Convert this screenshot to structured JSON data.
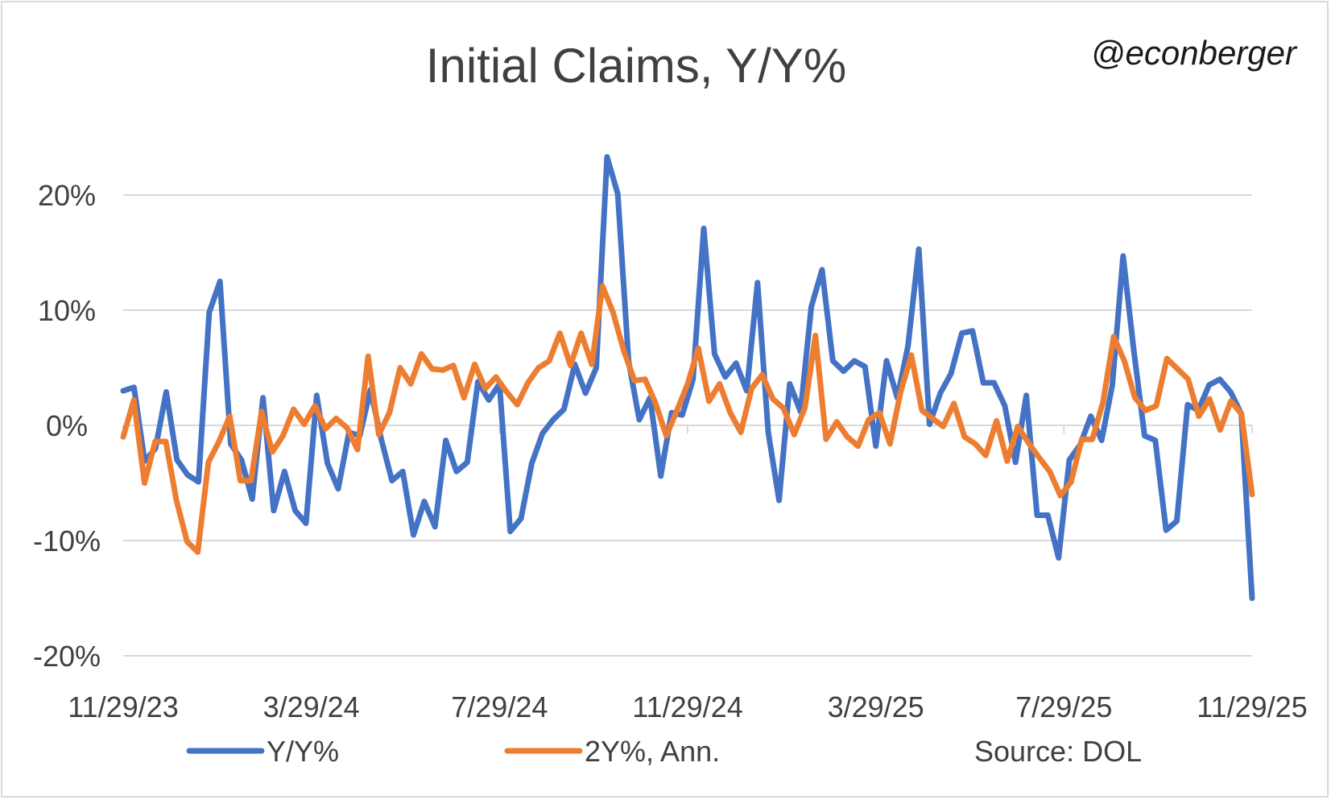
{
  "chart_data": {
    "type": "line",
    "title": "Initial Claims, Y/Y%",
    "watermark": "@econberger",
    "source": "Source: DOL",
    "xlabel": "",
    "ylabel": "",
    "ylim": [
      -20,
      20
    ],
    "yticks": [
      -20,
      -10,
      0,
      10,
      20
    ],
    "ytick_labels": [
      "-20%",
      "-10%",
      "0%",
      "10%",
      "20%"
    ],
    "x_start": "11/29/23",
    "x_end": "11/29/25",
    "xtick_labels": [
      "11/29/23",
      "3/29/24",
      "7/29/24",
      "11/29/24",
      "3/29/25",
      "7/29/25",
      "11/29/25"
    ],
    "grid": true,
    "legend_position": "bottom",
    "series": [
      {
        "name": "Y/Y%",
        "color": "#4472C4",
        "values": [
          3.0,
          3.3,
          -3.1,
          -2.0,
          2.9,
          -3.0,
          -4.3,
          -4.9,
          9.8,
          12.5,
          -1.6,
          -3.0,
          -6.4,
          2.4,
          -7.4,
          -4.0,
          -7.4,
          -8.5,
          2.6,
          -3.3,
          -5.5,
          -0.6,
          -0.9,
          3.1,
          -1.2,
          -4.8,
          -4.0,
          -9.5,
          -6.6,
          -8.8,
          -1.3,
          -4.0,
          -3.2,
          3.8,
          2.2,
          3.6,
          -9.2,
          -8.1,
          -3.3,
          -0.7,
          0.5,
          1.4,
          5.3,
          2.8,
          5.0,
          23.3,
          20.1,
          5.6,
          0.5,
          2.4,
          -4.4,
          1.1,
          0.9,
          4.0,
          17.1,
          6.2,
          4.2,
          5.4,
          3.0,
          12.4,
          -0.6,
          -6.5,
          3.6,
          1.2,
          10.3,
          13.5,
          5.6,
          4.7,
          5.6,
          5.1,
          -1.8,
          5.6,
          2.4,
          6.9,
          15.3,
          0.1,
          2.8,
          4.5,
          8.0,
          8.2,
          3.7,
          3.7,
          1.7,
          -3.2,
          2.6,
          -7.8,
          -7.8,
          -11.5,
          -3.0,
          -1.7,
          0.8,
          -1.3,
          3.5,
          14.7,
          6.5,
          -0.9,
          -1.3,
          -9.1,
          -8.3,
          1.8,
          1.3,
          3.5,
          4.0,
          2.9,
          1.0,
          -15.0
        ]
      },
      {
        "name": "2Y%, Ann.",
        "color": "#ED7D31",
        "values": [
          -1.0,
          2.2,
          -5.0,
          -1.4,
          -1.4,
          -6.5,
          -10.1,
          -11.0,
          -3.2,
          -1.4,
          0.8,
          -4.8,
          -4.8,
          1.2,
          -2.3,
          -0.9,
          1.4,
          0.1,
          1.7,
          -0.3,
          0.6,
          -0.2,
          -2.1,
          6.0,
          -0.8,
          1.1,
          5.0,
          3.6,
          6.2,
          4.9,
          4.8,
          5.2,
          2.4,
          5.3,
          3.2,
          4.2,
          2.9,
          1.8,
          3.7,
          5.0,
          5.6,
          8.0,
          5.2,
          8.0,
          5.3,
          12.1,
          9.8,
          6.5,
          3.9,
          4.0,
          1.9,
          -0.9,
          1.3,
          3.6,
          6.7,
          2.1,
          3.6,
          1.1,
          -0.6,
          3.2,
          4.4,
          2.3,
          1.5,
          -0.8,
          1.5,
          7.8,
          -1.2,
          0.3,
          -1.0,
          -1.8,
          0.5,
          1.1,
          -1.6,
          2.9,
          6.1,
          1.3,
          0.6,
          -0.1,
          1.9,
          -1.0,
          -1.6,
          -2.6,
          0.4,
          -3.1,
          -0.1,
          -1.5,
          -2.8,
          -4.0,
          -6.1,
          -4.9,
          -1.2,
          -1.2,
          2.0,
          7.7,
          5.6,
          2.4,
          1.3,
          1.7,
          5.8,
          4.9,
          4.0,
          0.8,
          2.3,
          -0.4,
          2.1,
          1.0,
          -6.0
        ]
      }
    ]
  }
}
